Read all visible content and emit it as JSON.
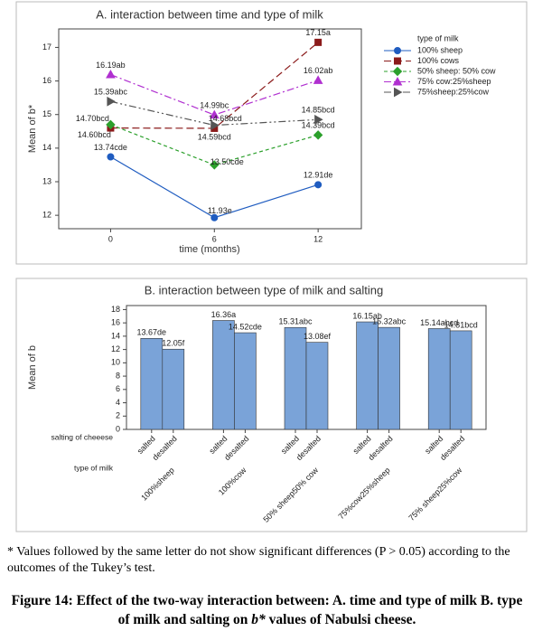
{
  "chart_data": [
    {
      "type": "line",
      "title": "A. interaction between time and type of milk",
      "x_label": "time (months)",
      "y_label": "Mean of b*",
      "x": [
        0,
        6,
        12
      ],
      "xlim": [
        -3,
        14.5
      ],
      "xticks": [
        0,
        6,
        12
      ],
      "ylim": [
        11.6,
        17.55
      ],
      "yticks": [
        12,
        13,
        14,
        15,
        16,
        17
      ],
      "legend_title": "type of milk",
      "legend": "right",
      "series": [
        {
          "name": "100% sheep",
          "color": "#1f5cc0",
          "marker": "circle",
          "dash": "",
          "values": [
            13.74,
            11.93,
            12.91
          ],
          "value_labels": [
            "13.74cde",
            "11.93e",
            "12.91de"
          ]
        },
        {
          "name": "100% cows",
          "color": "#8b1a1a",
          "marker": "square",
          "dash": "8 4",
          "values": [
            14.6,
            14.59,
            17.15
          ],
          "value_labels": [
            "14.60bcd",
            "14.59bcd",
            "17.15a"
          ]
        },
        {
          "name": "50% sheep: 50% cow",
          "color": "#2ca02c",
          "marker": "diamond",
          "dash": "4 3",
          "values": [
            14.7,
            13.5,
            14.39
          ],
          "value_labels": [
            "14.70bcd",
            "13.50cde",
            "14.39bcd"
          ]
        },
        {
          "name": "75% cow:25%sheep",
          "color": "#b030d0",
          "marker": "triangle",
          "dash": "8 3 2 3",
          "values": [
            16.19,
            14.99,
            16.02
          ],
          "value_labels": [
            "16.19ab",
            "14.99bc",
            "16.02ab"
          ]
        },
        {
          "name": "75%sheep:25%cow",
          "color": "#555555",
          "marker": "tright",
          "dash": "8 3 2 3 2 3",
          "values": [
            15.39,
            14.68,
            14.85
          ],
          "value_labels": [
            "15.39abc",
            "14.68bcd",
            "14.85bcd"
          ]
        }
      ]
    },
    {
      "type": "grouped_bar",
      "title": "B. interaction between type of milk and salting",
      "y_label": "Mean of b",
      "color": "#7aa3d8",
      "ylim": [
        0,
        18.6
      ],
      "yticks": [
        0,
        2,
        4,
        6,
        8,
        10,
        12,
        14,
        16,
        18
      ],
      "row_labels": [
        "salting of cheeese",
        "type of milk"
      ],
      "categories": [
        "salted",
        "desalted"
      ],
      "groups": [
        {
          "name": "100%sheep",
          "values": [
            13.67,
            12.05
          ],
          "value_labels": [
            "13.67de",
            "12.05f"
          ]
        },
        {
          "name": "100%cow",
          "values": [
            16.36,
            14.52
          ],
          "value_labels": [
            "16.36a",
            "14.52cde"
          ]
        },
        {
          "name": "50% sheep50% cow",
          "values": [
            15.31,
            13.08
          ],
          "value_labels": [
            "15.31abc",
            "13.08ef"
          ]
        },
        {
          "name": "75%cow25%sheep",
          "values": [
            16.15,
            15.32
          ],
          "value_labels": [
            "16.15ab",
            "15.32abc"
          ]
        },
        {
          "name": "75% sheep25%cow",
          "values": [
            15.14,
            14.81
          ],
          "value_labels": [
            "15.14abcd",
            "14.81bcd"
          ]
        }
      ]
    }
  ],
  "footnote": "* Values followed by the same letter do not show significant differences (P > 0.05) according to the outcomes of the Tukey’s test.",
  "caption": [
    "Figure 14: Effect of the two-way interaction between: A. time and type of milk B. type of milk and salting on ",
    "b*",
    " values of Nabulsi cheese."
  ]
}
